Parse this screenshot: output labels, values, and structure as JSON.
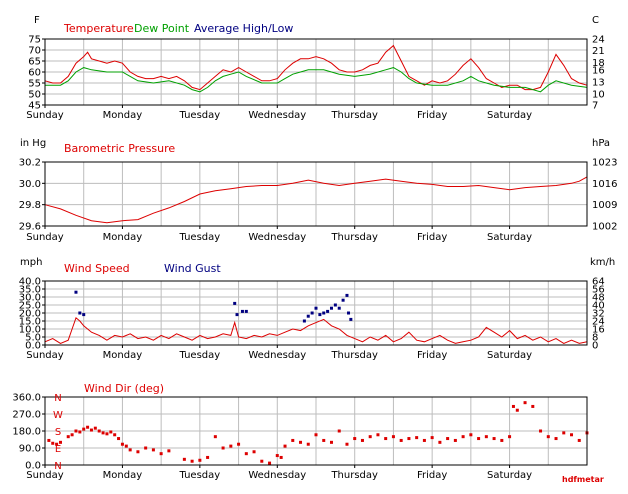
{
  "days": [
    "Sunday",
    "Monday",
    "Tuesday",
    "Wednesday",
    "Thursday",
    "Friday",
    "Saturday"
  ],
  "watermark": "hdfmetar",
  "colors": {
    "red": "#dd0000",
    "green": "#00a000",
    "navy": "#000080",
    "grid": "#bdbdbd"
  },
  "chart_data": [
    {
      "type": "line",
      "id": "temp",
      "ylabel_left": "F",
      "ylabel_right": "C",
      "ylim": [
        45,
        75
      ],
      "yticks": [
        45,
        50,
        55,
        60,
        65,
        70,
        75
      ],
      "yticks_right": [
        {
          "label": "7",
          "at": 45
        },
        {
          "label": "10",
          "at": 50
        },
        {
          "label": "13",
          "at": 55.4
        },
        {
          "label": "16",
          "at": 60.8
        },
        {
          "label": "18",
          "at": 64.4
        },
        {
          "label": "21",
          "at": 69.8
        },
        {
          "label": "24",
          "at": 75.2
        }
      ],
      "legend": [
        {
          "label": "Temperature",
          "color": "#dd0000"
        },
        {
          "label": "Dew Point",
          "color": "#00a000"
        },
        {
          "label": "Average High/Low",
          "color": "#000080"
        }
      ],
      "series": [
        {
          "name": "Temperature",
          "color": "#dd0000",
          "x": [
            0,
            0.1,
            0.2,
            0.3,
            0.4,
            0.5,
            0.55,
            0.6,
            0.7,
            0.8,
            0.9,
            1.0,
            1.1,
            1.2,
            1.3,
            1.4,
            1.5,
            1.6,
            1.7,
            1.8,
            1.9,
            2.0,
            2.1,
            2.2,
            2.3,
            2.4,
            2.5,
            2.6,
            2.7,
            2.8,
            2.9,
            3.0,
            3.1,
            3.2,
            3.3,
            3.4,
            3.5,
            3.6,
            3.7,
            3.8,
            3.9,
            4.0,
            4.1,
            4.2,
            4.3,
            4.4,
            4.5,
            4.6,
            4.7,
            4.8,
            4.9,
            5.0,
            5.1,
            5.2,
            5.3,
            5.4,
            5.5,
            5.6,
            5.7,
            5.8,
            5.9,
            6.0,
            6.1,
            6.2,
            6.3,
            6.4,
            6.5,
            6.6,
            6.7,
            6.8,
            6.9,
            7.0
          ],
          "y": [
            56,
            55,
            55,
            58,
            64,
            67,
            69,
            66,
            65,
            64,
            65,
            64,
            60,
            58,
            57,
            57,
            58,
            57,
            58,
            56,
            53,
            52,
            55,
            58,
            61,
            60,
            62,
            60,
            58,
            56,
            56,
            57,
            61,
            64,
            66,
            66,
            67,
            66,
            64,
            61,
            60,
            60,
            61,
            63,
            64,
            69,
            72,
            65,
            58,
            56,
            54,
            56,
            55,
            56,
            59,
            63,
            66,
            62,
            57,
            55,
            53,
            54,
            54,
            52,
            52,
            53,
            60,
            68,
            63,
            57,
            55,
            54
          ]
        },
        {
          "name": "Dew Point",
          "color": "#00a000",
          "x": [
            0,
            0.2,
            0.3,
            0.4,
            0.5,
            0.6,
            0.8,
            1.0,
            1.1,
            1.2,
            1.4,
            1.6,
            1.8,
            1.9,
            2.0,
            2.1,
            2.2,
            2.3,
            2.4,
            2.5,
            2.6,
            2.8,
            3.0,
            3.1,
            3.2,
            3.3,
            3.4,
            3.5,
            3.6,
            3.7,
            3.8,
            4.0,
            4.2,
            4.4,
            4.5,
            4.6,
            4.7,
            4.8,
            5.0,
            5.2,
            5.4,
            5.5,
            5.6,
            5.8,
            6.0,
            6.2,
            6.4,
            6.5,
            6.6,
            6.8,
            7.0
          ],
          "y": [
            54,
            54,
            56,
            60,
            62,
            61,
            60,
            60,
            58,
            56,
            55,
            56,
            54,
            52,
            51,
            53,
            56,
            58,
            59,
            60,
            58,
            55,
            55,
            57,
            59,
            60,
            61,
            61,
            61,
            60,
            59,
            58,
            59,
            61,
            62,
            60,
            57,
            55,
            54,
            54,
            56,
            58,
            56,
            54,
            53,
            53,
            51,
            54,
            56,
            54,
            53
          ]
        }
      ]
    },
    {
      "type": "line",
      "id": "pressure",
      "title": "Barometric Pressure",
      "ylabel_left": "in Hg",
      "ylabel_right": "hPa",
      "ylim": [
        29.6,
        30.2
      ],
      "yticks": [
        29.6,
        29.8,
        30.0,
        30.2
      ],
      "ytick_labels": [
        "29.6",
        "29.8",
        "30.0",
        "30.2"
      ],
      "yticks_right": [
        {
          "label": "1002",
          "at": 29.59
        },
        {
          "label": "1009",
          "at": 29.8
        },
        {
          "label": "1016",
          "at": 30.0
        },
        {
          "label": "1023",
          "at": 30.21
        }
      ],
      "series": [
        {
          "name": "Barometric Pressure",
          "color": "#dd0000",
          "x": [
            0,
            0.2,
            0.4,
            0.6,
            0.8,
            1.0,
            1.2,
            1.4,
            1.6,
            1.8,
            2.0,
            2.2,
            2.4,
            2.6,
            2.8,
            3.0,
            3.2,
            3.4,
            3.6,
            3.8,
            4.0,
            4.2,
            4.4,
            4.6,
            4.8,
            5.0,
            5.2,
            5.4,
            5.6,
            5.8,
            6.0,
            6.2,
            6.4,
            6.6,
            6.8,
            6.9,
            7.0
          ],
          "y": [
            29.8,
            29.76,
            29.7,
            29.65,
            29.63,
            29.65,
            29.66,
            29.72,
            29.77,
            29.83,
            29.9,
            29.93,
            29.95,
            29.97,
            29.98,
            29.98,
            30.0,
            30.03,
            30.0,
            29.98,
            30.0,
            30.02,
            30.04,
            30.02,
            30.0,
            29.99,
            29.97,
            29.97,
            29.98,
            29.96,
            29.94,
            29.96,
            29.97,
            29.98,
            30.0,
            30.02,
            30.06
          ]
        }
      ]
    },
    {
      "type": "line",
      "id": "wind",
      "ylabel_left": "mph",
      "ylabel_right": "km/h",
      "ylim": [
        0,
        40
      ],
      "yticks": [
        0,
        5,
        10,
        15,
        20,
        25,
        30,
        35,
        40
      ],
      "ytick_labels": [
        "0.0",
        "5.0",
        "10.0",
        "15.0",
        "20.0",
        "25.0",
        "30.0",
        "35.0",
        "40.0"
      ],
      "yticks_right": [
        {
          "label": "0",
          "at": 0
        },
        {
          "label": "8",
          "at": 5
        },
        {
          "label": "16",
          "at": 10
        },
        {
          "label": "24",
          "at": 15
        },
        {
          "label": "32",
          "at": 20
        },
        {
          "label": "40",
          "at": 25
        },
        {
          "label": "48",
          "at": 30
        },
        {
          "label": "56",
          "at": 35
        },
        {
          "label": "64",
          "at": 40
        }
      ],
      "legend": [
        {
          "label": "Wind Speed",
          "color": "#dd0000"
        },
        {
          "label": "Wind Gust",
          "color": "#000080"
        }
      ],
      "series": [
        {
          "name": "Wind Speed",
          "color": "#dd0000",
          "x": [
            0,
            0.1,
            0.2,
            0.3,
            0.35,
            0.4,
            0.45,
            0.5,
            0.6,
            0.7,
            0.8,
            0.9,
            1.0,
            1.1,
            1.2,
            1.3,
            1.4,
            1.5,
            1.6,
            1.7,
            1.8,
            1.9,
            2.0,
            2.1,
            2.2,
            2.3,
            2.4,
            2.45,
            2.5,
            2.6,
            2.7,
            2.8,
            2.9,
            3.0,
            3.1,
            3.2,
            3.3,
            3.4,
            3.5,
            3.6,
            3.7,
            3.8,
            3.9,
            4.0,
            4.1,
            4.2,
            4.3,
            4.4,
            4.5,
            4.6,
            4.7,
            4.8,
            4.9,
            5.0,
            5.1,
            5.2,
            5.3,
            5.4,
            5.5,
            5.6,
            5.7,
            5.8,
            5.9,
            6.0,
            6.1,
            6.2,
            6.3,
            6.4,
            6.5,
            6.6,
            6.7,
            6.8,
            6.9,
            7.0
          ],
          "y": [
            2,
            4,
            1,
            3,
            10,
            17,
            15,
            12,
            8,
            6,
            3,
            6,
            5,
            7,
            4,
            5,
            3,
            6,
            4,
            7,
            5,
            3,
            6,
            4,
            5,
            7,
            6,
            14,
            5,
            4,
            6,
            5,
            7,
            6,
            8,
            10,
            9,
            12,
            14,
            16,
            12,
            10,
            6,
            4,
            2,
            5,
            3,
            6,
            2,
            4,
            8,
            3,
            2,
            4,
            6,
            3,
            1,
            2,
            3,
            5,
            11,
            8,
            5,
            9,
            4,
            6,
            3,
            5,
            2,
            4,
            1,
            3,
            1,
            2
          ]
        },
        {
          "name": "Wind Gust",
          "color": "#000080",
          "mode": "markers",
          "x": [
            0.4,
            0.45,
            0.5,
            2.45,
            2.48,
            2.55,
            2.6,
            3.35,
            3.4,
            3.45,
            3.5,
            3.55,
            3.6,
            3.65,
            3.7,
            3.75,
            3.8,
            3.85,
            3.9,
            3.92,
            3.95
          ],
          "y": [
            33,
            20,
            19,
            26,
            19,
            21,
            21,
            15,
            18,
            20,
            23,
            19,
            20,
            21,
            23,
            25,
            23,
            28,
            31,
            20,
            16
          ]
        }
      ]
    },
    {
      "type": "scatter",
      "id": "winddir",
      "ylim": [
        0,
        360
      ],
      "yticks": [
        0,
        90,
        180,
        270,
        360
      ],
      "ytick_labels": [
        "0.0",
        "90.0",
        "180.0",
        "270.0",
        "360.0"
      ],
      "compass": [
        "N",
        "E",
        "S",
        "W",
        "N"
      ],
      "legend": [
        {
          "label": "Wind Dir (deg)",
          "color": "#dd0000"
        }
      ],
      "series": [
        {
          "name": "Wind Dir (deg)",
          "color": "#dd0000",
          "x": [
            0.05,
            0.1,
            0.15,
            0.2,
            0.3,
            0.35,
            0.4,
            0.45,
            0.5,
            0.55,
            0.6,
            0.65,
            0.7,
            0.75,
            0.8,
            0.85,
            0.9,
            0.95,
            1.0,
            1.05,
            1.1,
            1.2,
            1.3,
            1.4,
            1.5,
            1.6,
            1.8,
            1.9,
            2.0,
            2.1,
            2.2,
            2.3,
            2.4,
            2.5,
            2.6,
            2.7,
            2.8,
            2.9,
            3.0,
            3.05,
            3.1,
            3.2,
            3.3,
            3.4,
            3.5,
            3.6,
            3.7,
            3.8,
            3.9,
            4.0,
            4.1,
            4.2,
            4.3,
            4.4,
            4.5,
            4.6,
            4.7,
            4.8,
            4.9,
            5.0,
            5.1,
            5.2,
            5.3,
            5.4,
            5.5,
            5.6,
            5.7,
            5.8,
            5.9,
            6.0,
            6.05,
            6.1,
            6.2,
            6.3,
            6.4,
            6.5,
            6.6,
            6.7,
            6.8,
            6.9,
            7.0
          ],
          "y": [
            130,
            115,
            110,
            120,
            150,
            160,
            180,
            175,
            190,
            200,
            185,
            195,
            180,
            170,
            165,
            175,
            160,
            140,
            110,
            100,
            80,
            70,
            90,
            80,
            60,
            75,
            30,
            20,
            25,
            40,
            150,
            90,
            100,
            110,
            60,
            70,
            20,
            10,
            50,
            40,
            100,
            130,
            120,
            110,
            160,
            130,
            120,
            180,
            110,
            140,
            130,
            150,
            160,
            140,
            150,
            130,
            140,
            145,
            130,
            145,
            120,
            140,
            130,
            150,
            160,
            140,
            150,
            140,
            130,
            150,
            310,
            290,
            330,
            310,
            180,
            150,
            140,
            170,
            160,
            130,
            170
          ]
        }
      ]
    }
  ]
}
